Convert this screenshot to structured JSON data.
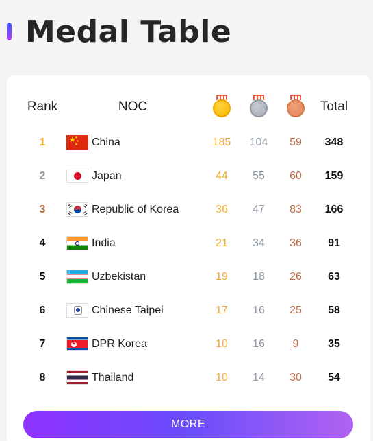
{
  "page": {
    "title": "Medal Table"
  },
  "colors": {
    "gold": "#f2b632",
    "silver": "#9ca3ad",
    "bronze": "#e0845a",
    "gold_text": "#f0ab2e",
    "silver_text": "#8e97a3",
    "bronze_text": "#c06a45",
    "accent": "#8f32ff"
  },
  "table": {
    "headers": {
      "rank": "Rank",
      "noc": "NOC",
      "gold": "gold-medal-icon",
      "silver": "silver-medal-icon",
      "bronze": "bronze-medal-icon",
      "total": "Total"
    },
    "rows": [
      {
        "rank": "1",
        "noc": "China",
        "flag": "china-flag",
        "gold": "185",
        "silver": "104",
        "bronze": "59",
        "total": "348"
      },
      {
        "rank": "2",
        "noc": "Japan",
        "flag": "japan-flag",
        "gold": "44",
        "silver": "55",
        "bronze": "60",
        "total": "159"
      },
      {
        "rank": "3",
        "noc": "Republic of Korea",
        "flag": "korea-flag",
        "gold": "36",
        "silver": "47",
        "bronze": "83",
        "total": "166"
      },
      {
        "rank": "4",
        "noc": "India",
        "flag": "india-flag",
        "gold": "21",
        "silver": "34",
        "bronze": "36",
        "total": "91"
      },
      {
        "rank": "5",
        "noc": "Uzbekistan",
        "flag": "uzbekistan-flag",
        "gold": "19",
        "silver": "18",
        "bronze": "26",
        "total": "63"
      },
      {
        "rank": "6",
        "noc": "Chinese Taipei",
        "flag": "chinese-taipei-flag",
        "gold": "17",
        "silver": "16",
        "bronze": "25",
        "total": "58"
      },
      {
        "rank": "7",
        "noc": "DPR Korea",
        "flag": "dpr-korea-flag",
        "gold": "10",
        "silver": "16",
        "bronze": "9",
        "total": "35"
      },
      {
        "rank": "8",
        "noc": "Thailand",
        "flag": "thailand-flag",
        "gold": "10",
        "silver": "14",
        "bronze": "30",
        "total": "54"
      }
    ]
  },
  "more_button": {
    "label": "MORE"
  }
}
